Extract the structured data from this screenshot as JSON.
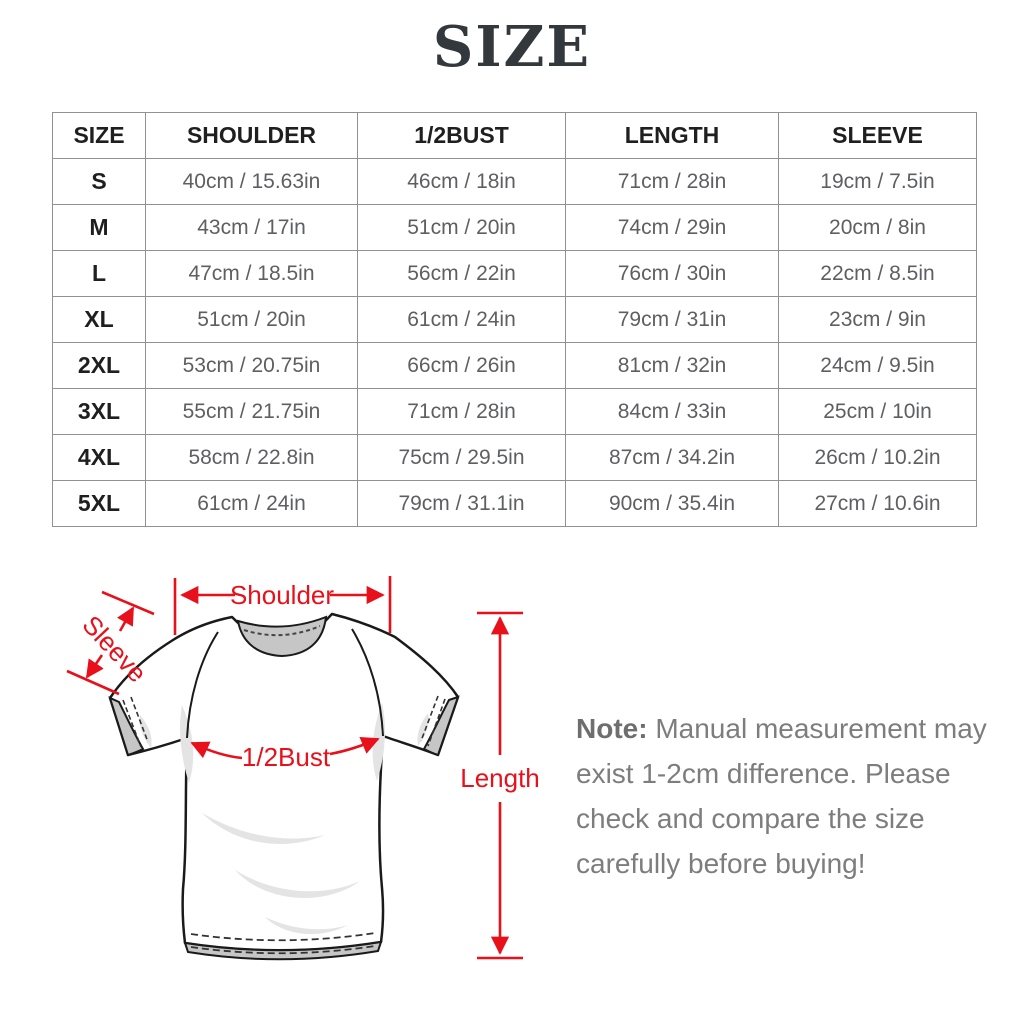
{
  "title": "SIZE",
  "table": {
    "columns": [
      "SIZE",
      "SHOULDER",
      "1/2BUST",
      "LENGTH",
      "SLEEVE"
    ],
    "rows": [
      [
        "S",
        "40cm / 15.63in",
        "46cm / 18in",
        "71cm / 28in",
        "19cm / 7.5in"
      ],
      [
        "M",
        "43cm / 17in",
        "51cm / 20in",
        "74cm / 29in",
        "20cm / 8in"
      ],
      [
        "L",
        "47cm / 18.5in",
        "56cm / 22in",
        "76cm / 30in",
        "22cm / 8.5in"
      ],
      [
        "XL",
        "51cm / 20in",
        "61cm / 24in",
        "79cm / 31in",
        "23cm / 9in"
      ],
      [
        "2XL",
        "53cm / 20.75in",
        "66cm / 26in",
        "81cm / 32in",
        "24cm / 9.5in"
      ],
      [
        "3XL",
        "55cm / 21.75in",
        "71cm / 28in",
        "84cm / 33in",
        "25cm / 10in"
      ],
      [
        "4XL",
        "58cm / 22.8in",
        "75cm / 29.5in",
        "87cm / 34.2in",
        "26cm / 10.2in"
      ],
      [
        "5XL",
        "61cm / 24in",
        "79cm / 31.1in",
        "90cm / 35.4in",
        "27cm / 10.6in"
      ]
    ]
  },
  "diagram": {
    "labels": {
      "shoulder": "Shoulder",
      "sleeve": "Sleeve",
      "bust": "1/2Bust",
      "length": "Length"
    },
    "accent_color": "#e8101a",
    "shirt_outline_color": "#1a1a1a",
    "shirt_shade_color": "#c6c6c6"
  },
  "note": {
    "label": "Note:",
    "text": " Manual measurement may exist 1-2cm difference. Please check and compare the size carefully before buying!"
  }
}
